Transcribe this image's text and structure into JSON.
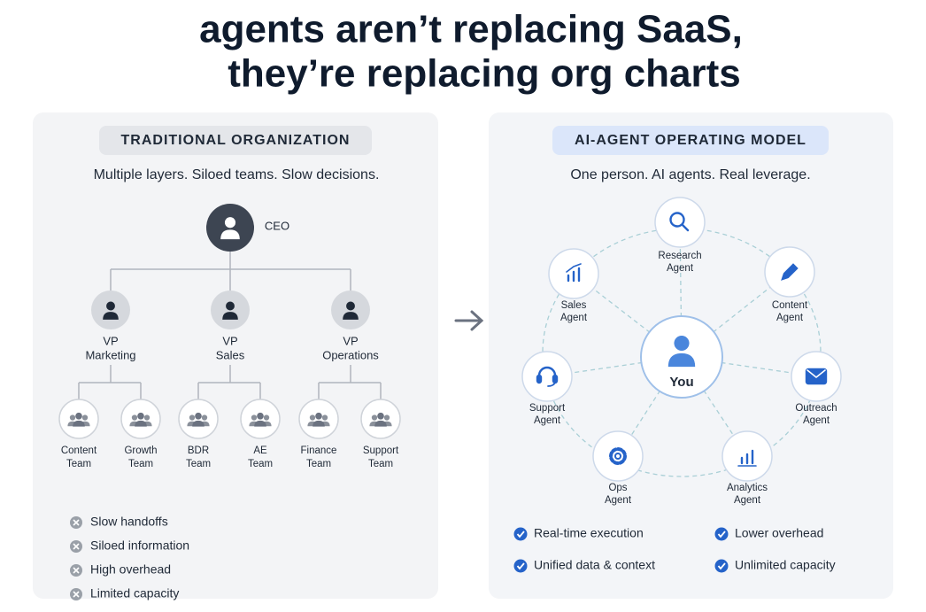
{
  "header": {
    "title": [
      "agents aren’t replacing SaaS,",
      "they’re replacing org charts"
    ]
  },
  "traditional": {
    "badge": "TRADITIONAL ORGANIZATION",
    "subtitle": "Multiple layers. Siloed teams. Slow decisions.",
    "ceo": {
      "label": "CEO"
    },
    "vps": [
      {
        "label": [
          "VP",
          "Marketing"
        ],
        "teams": [
          {
            "label": [
              "Content",
              "Team"
            ]
          },
          {
            "label": [
              "Growth",
              "Team"
            ]
          }
        ]
      },
      {
        "label": [
          "VP",
          "Sales"
        ],
        "teams": [
          {
            "label": [
              "BDR",
              "Team"
            ]
          },
          {
            "label": [
              "AE",
              "Team"
            ]
          }
        ]
      },
      {
        "label": [
          "VP",
          "Operations"
        ],
        "teams": [
          {
            "label": [
              "Finance",
              "Team"
            ]
          },
          {
            "label": [
              "Support",
              "Team"
            ]
          }
        ]
      }
    ],
    "drawbacks": [
      "Slow handoffs",
      "Siloed information",
      "High overhead",
      "Limited capacity"
    ]
  },
  "ai_model": {
    "badge": "AI-AGENT OPERATING MODEL",
    "subtitle": "One person. AI agents. Real leverage.",
    "center": {
      "label": "You"
    },
    "agents": [
      {
        "label": [
          "Research",
          "Agent"
        ]
      },
      {
        "label": [
          "Content",
          "Agent"
        ]
      },
      {
        "label": [
          "Outreach",
          "Agent"
        ]
      },
      {
        "label": [
          "Analytics",
          "Agent"
        ]
      },
      {
        "label": [
          "Ops",
          "Agent"
        ]
      },
      {
        "label": [
          "Support",
          "Agent"
        ]
      },
      {
        "label": [
          "Sales",
          "Agent"
        ]
      }
    ],
    "benefits": [
      "Real-time execution",
      "Lower overhead",
      "Unified data & context",
      "Unlimited capacity"
    ]
  }
}
